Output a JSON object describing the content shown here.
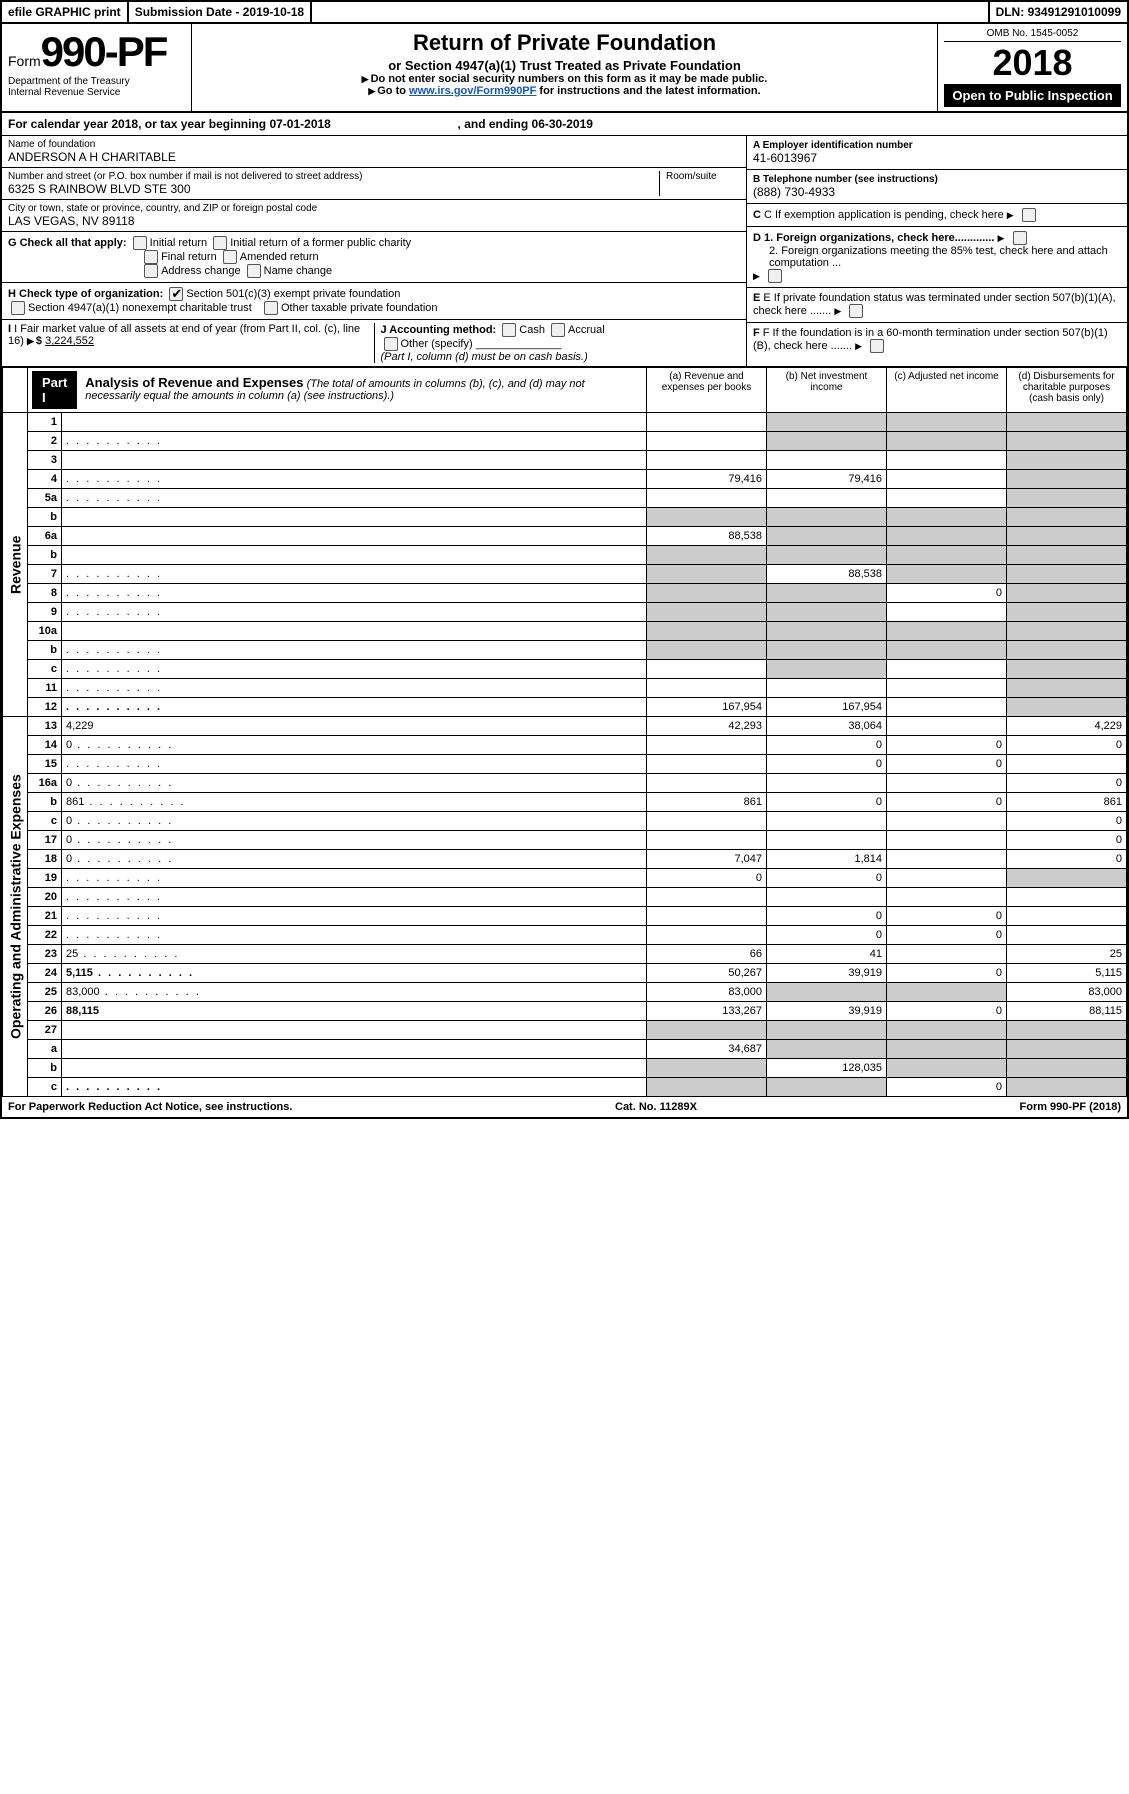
{
  "topbar": {
    "efile": "efile GRAPHIC print",
    "sub_label": "Submission Date - ",
    "sub_date": "2019-10-18",
    "dln_label": "DLN: ",
    "dln": "93491291010099"
  },
  "header": {
    "form_word": "Form",
    "form_no": "990-PF",
    "dept": "Department of the Treasury",
    "irs": "Internal Revenue Service",
    "title": "Return of Private Foundation",
    "subtitle": "or Section 4947(a)(1) Trust Treated as Private Foundation",
    "note1": "Do not enter social security numbers on this form as it may be made public.",
    "note2_pre": "Go to ",
    "note2_link": "www.irs.gov/Form990PF",
    "note2_post": " for instructions and the latest information.",
    "omb": "OMB No. 1545-0052",
    "year": "2018",
    "open": "Open to Public Inspection"
  },
  "cal": {
    "pre": "For calendar year 2018, or tax year beginning ",
    "begin": "07-01-2018",
    "mid": ", and ending ",
    "end": "06-30-2019"
  },
  "info": {
    "name_lbl": "Name of foundation",
    "name": "ANDERSON A H CHARITABLE",
    "addr_lbl": "Number and street (or P.O. box number if mail is not delivered to street address)",
    "room_lbl": "Room/suite",
    "addr": "6325 S RAINBOW BLVD STE 300",
    "city_lbl": "City or town, state or province, country, and ZIP or foreign postal code",
    "city": "LAS VEGAS, NV  89118",
    "a_lbl": "A Employer identification number",
    "a_val": "41-6013967",
    "b_lbl": "B Telephone number (see instructions)",
    "b_val": "(888) 730-4933",
    "c_lbl": "C If exemption application is pending, check here",
    "d1": "D 1. Foreign organizations, check here.............",
    "d2": "2. Foreign organizations meeting the 85% test, check here and attach computation ...",
    "e": "E  If private foundation status was terminated under section 507(b)(1)(A), check here .......",
    "f": "F  If the foundation is in a 60-month termination under section 507(b)(1)(B), check here .......",
    "g_lbl": "G Check all that apply:",
    "g_opts": [
      "Initial return",
      "Initial return of a former public charity",
      "Final return",
      "Amended return",
      "Address change",
      "Name change"
    ],
    "h_lbl": "H Check type of organization:",
    "h_opts": [
      "Section 501(c)(3) exempt private foundation",
      "Section 4947(a)(1) nonexempt charitable trust",
      "Other taxable private foundation"
    ],
    "i_lbl": "I Fair market value of all assets at end of year (from Part II, col. (c), line 16)",
    "i_val": "3,224,552",
    "j_lbl": "J Accounting method:",
    "j_opts": [
      "Cash",
      "Accrual"
    ],
    "j_other": "Other (specify)",
    "j_note": "(Part I, column (d) must be on cash basis.)"
  },
  "part1": {
    "tag": "Part I",
    "title": "Analysis of Revenue and Expenses",
    "note": "(The total of amounts in columns (b), (c), and (d) may not necessarily equal the amounts in column (a) (see instructions).)",
    "cols": {
      "a": "(a) Revenue and expenses per books",
      "b": "(b) Net investment income",
      "c": "(c) Adjusted net income",
      "d": "(d) Disbursements for charitable purposes (cash basis only)"
    },
    "side_rev": "Revenue",
    "side_exp": "Operating and Administrative Expenses"
  },
  "rows_top": [
    {
      "n": "1",
      "d": "",
      "a": "",
      "b": "",
      "c": "",
      "sb": true,
      "sc": true,
      "sd": true
    },
    {
      "n": "2",
      "d": "",
      "dots": true,
      "a": "",
      "b": "",
      "c": "",
      "sb": true,
      "sc": true,
      "sd": true
    },
    {
      "n": "3",
      "d": "",
      "a": "",
      "b": "",
      "c": "",
      "sd": true
    },
    {
      "n": "4",
      "d": "",
      "dots": true,
      "a": "79,416",
      "b": "79,416",
      "c": "",
      "sd": true
    },
    {
      "n": "5a",
      "d": "",
      "dots": true,
      "a": "",
      "b": "",
      "c": "",
      "sd": true
    },
    {
      "n": "b",
      "d": "",
      "a": "",
      "b": "",
      "c": "",
      "sa": true,
      "sb": true,
      "sc": true,
      "sd": true
    },
    {
      "n": "6a",
      "d": "",
      "a": "88,538",
      "b": "",
      "c": "",
      "sb": true,
      "sc": true,
      "sd": true
    },
    {
      "n": "b",
      "d": "",
      "a": "",
      "b": "",
      "c": "",
      "sa": true,
      "sb": true,
      "sc": true,
      "sd": true
    },
    {
      "n": "7",
      "d": "",
      "dots": true,
      "a": "",
      "b": "88,538",
      "c": "",
      "sa": true,
      "sc": true,
      "sd": true
    },
    {
      "n": "8",
      "d": "",
      "dots": true,
      "a": "",
      "b": "",
      "c": "0",
      "sa": true,
      "sb": true,
      "sd": true
    },
    {
      "n": "9",
      "d": "",
      "dots": true,
      "a": "",
      "b": "",
      "c": "",
      "sa": true,
      "sb": true,
      "sd": true
    },
    {
      "n": "10a",
      "d": "",
      "a": "",
      "b": "",
      "c": "",
      "sa": true,
      "sb": true,
      "sc": true,
      "sd": true
    },
    {
      "n": "b",
      "d": "",
      "dots": true,
      "a": "",
      "b": "",
      "c": "",
      "sa": true,
      "sb": true,
      "sc": true,
      "sd": true
    },
    {
      "n": "c",
      "d": "",
      "dots": true,
      "a": "",
      "b": "",
      "c": "",
      "sb": true,
      "sd": true
    },
    {
      "n": "11",
      "d": "",
      "dots": true,
      "a": "",
      "b": "",
      "c": "",
      "sd": true
    },
    {
      "n": "12",
      "d": "",
      "dots": true,
      "b1": true,
      "a": "167,954",
      "b": "167,954",
      "c": "",
      "sd": true
    }
  ],
  "rows_bot": [
    {
      "n": "13",
      "d": "4,229",
      "a": "42,293",
      "b": "38,064",
      "c": ""
    },
    {
      "n": "14",
      "d": "0",
      "dots": true,
      "a": "",
      "b": "0",
      "c": "0"
    },
    {
      "n": "15",
      "d": "",
      "dots": true,
      "a": "",
      "b": "0",
      "c": "0"
    },
    {
      "n": "16a",
      "d": "0",
      "dots": true,
      "a": "",
      "b": "",
      "c": ""
    },
    {
      "n": "b",
      "d": "861",
      "dots": true,
      "a": "861",
      "b": "0",
      "c": "0"
    },
    {
      "n": "c",
      "d": "0",
      "dots": true,
      "a": "",
      "b": "",
      "c": ""
    },
    {
      "n": "17",
      "d": "0",
      "dots": true,
      "a": "",
      "b": "",
      "c": ""
    },
    {
      "n": "18",
      "d": "0",
      "dots": true,
      "a": "7,047",
      "b": "1,814",
      "c": ""
    },
    {
      "n": "19",
      "d": "",
      "dots": true,
      "a": "0",
      "b": "0",
      "c": "",
      "sd": true
    },
    {
      "n": "20",
      "d": "",
      "dots": true,
      "a": "",
      "b": "",
      "c": ""
    },
    {
      "n": "21",
      "d": "",
      "dots": true,
      "a": "",
      "b": "0",
      "c": "0"
    },
    {
      "n": "22",
      "d": "",
      "dots": true,
      "a": "",
      "b": "0",
      "c": "0"
    },
    {
      "n": "23",
      "d": "25",
      "dots": true,
      "a": "66",
      "b": "41",
      "c": ""
    },
    {
      "n": "24",
      "d": "5,115",
      "dots": true,
      "b1": true,
      "a": "50,267",
      "b": "39,919",
      "c": "0"
    },
    {
      "n": "25",
      "d": "83,000",
      "dots": true,
      "a": "83,000",
      "b": "",
      "c": "",
      "sb": true,
      "sc": true
    },
    {
      "n": "26",
      "d": "88,115",
      "b1": true,
      "a": "133,267",
      "b": "39,919",
      "c": "0"
    },
    {
      "n": "27",
      "d": "",
      "a": "",
      "b": "",
      "c": "",
      "sa": true,
      "sb": true,
      "sc": true,
      "sd": true
    },
    {
      "n": "a",
      "d": "",
      "b1": true,
      "a": "34,687",
      "b": "",
      "c": "",
      "sb": true,
      "sc": true,
      "sd": true
    },
    {
      "n": "b",
      "d": "",
      "b1": true,
      "a": "",
      "b": "128,035",
      "c": "",
      "sa": true,
      "sc": true,
      "sd": true
    },
    {
      "n": "c",
      "d": "",
      "dots": true,
      "b1": true,
      "a": "",
      "b": "",
      "c": "0",
      "sa": true,
      "sb": true,
      "sd": true
    }
  ],
  "footer": {
    "left": "For Paperwork Reduction Act Notice, see instructions.",
    "mid": "Cat. No. 11289X",
    "right": "Form 990-PF (2018)"
  }
}
